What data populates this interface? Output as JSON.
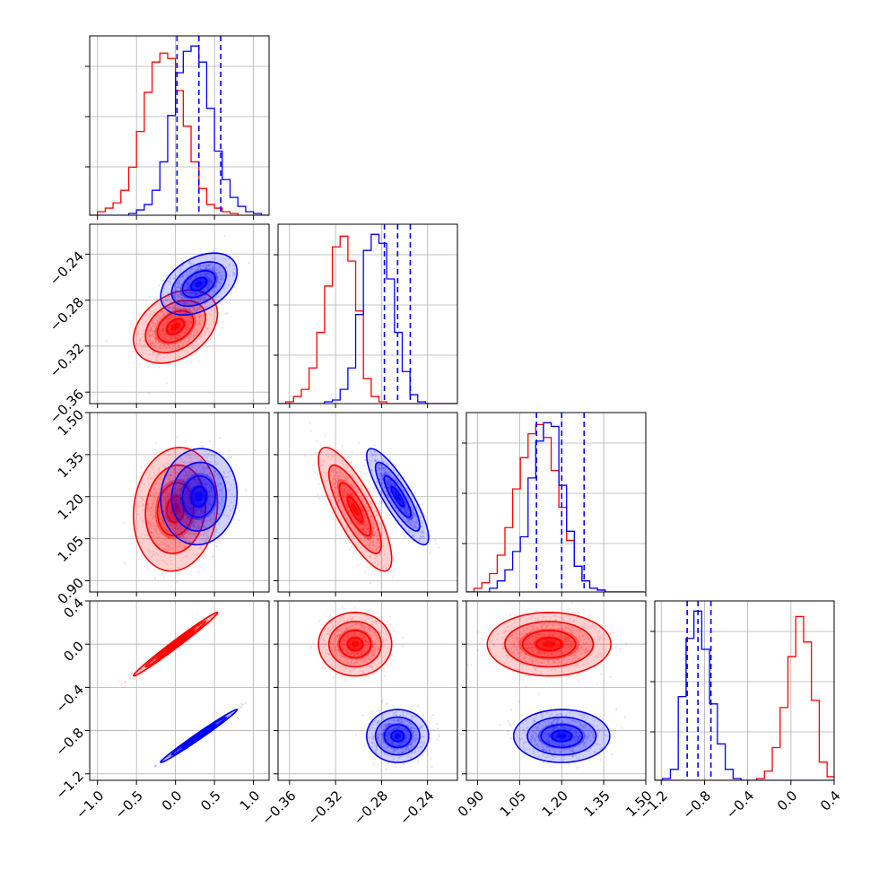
{
  "chart_data": {
    "type": "corner",
    "title": "",
    "colors": {
      "red": "#ff0000",
      "blue": "#0000ff"
    },
    "quantiles_shown_for": "blue",
    "parameters": [
      {
        "id": "p0",
        "range": [
          -1.1,
          1.2
        ],
        "ticks": [
          -1.0,
          -0.5,
          0.0,
          0.5,
          1.0
        ],
        "tick_labels": [
          "−1.0",
          "−0.5",
          "0.0",
          "0.5",
          "1.0"
        ]
      },
      {
        "id": "p1",
        "range": [
          -0.37,
          -0.214
        ],
        "ticks": [
          -0.36,
          -0.32,
          -0.28,
          -0.24
        ],
        "tick_labels": [
          "−0.36",
          "−0.32",
          "−0.28",
          "−0.24"
        ]
      },
      {
        "id": "p2",
        "range": [
          0.86,
          1.5
        ],
        "ticks": [
          0.9,
          1.05,
          1.2,
          1.35,
          1.5
        ],
        "tick_labels": [
          "0.90",
          "1.05",
          "1.20",
          "1.35",
          "1.50"
        ]
      },
      {
        "id": "p3",
        "range": [
          -1.26,
          0.4
        ],
        "ticks": [
          -1.2,
          -0.8,
          -0.4,
          0.0,
          0.4
        ],
        "tick_labels": [
          "−1.2",
          "−0.8",
          "−0.4",
          "0.0",
          "0.4"
        ]
      }
    ],
    "series": [
      {
        "color": "red",
        "marginal_means": [
          0.0,
          -0.303,
          1.155,
          0.0
        ],
        "marginal_sds": [
          0.22,
          0.013,
          0.09,
          0.12
        ],
        "correlations": {
          "0-1": 0.35,
          "0-2": 0.1,
          "0-3": 0.99,
          "1-2": -0.8,
          "1-3": 0.0,
          "2-3": 0.0
        },
        "histograms": {
          "p0": {
            "bin_start": -1.1,
            "bin_width": 0.1,
            "counts": [
              0,
              2,
              4,
              7,
              14,
              27,
              47,
              69,
              86,
              91,
              88,
              70,
              50,
              30,
              15,
              6,
              4,
              2,
              1,
              0,
              0,
              0,
              0
            ]
          },
          "p1": {
            "bin_start": -0.37,
            "bin_width": 0.00675,
            "counts": [
              0,
              1,
              4,
              8,
              20,
              40,
              66,
              88,
              94,
              80,
              52,
              14,
              4,
              1,
              0,
              0,
              0,
              0,
              0,
              0,
              0,
              0,
              0
            ]
          },
          "p2": {
            "bin_start": 0.86,
            "bin_width": 0.0275,
            "counts": [
              0,
              2,
              5,
              10,
              20,
              35,
              56,
              73,
              86,
              91,
              84,
              66,
              46,
              28,
              14,
              6,
              2,
              1,
              0,
              0,
              0,
              0,
              0
            ]
          },
          "p3": {
            "bin_start": -1.26,
            "bin_width": 0.0725,
            "counts": [
              0,
              0,
              0,
              0,
              0,
              0,
              0,
              0,
              0,
              0,
              0,
              0,
              0,
              1,
              5,
              18,
              40,
              68,
              90,
              76,
              44,
              10,
              2
            ]
          }
        }
      },
      {
        "color": "blue",
        "marginal_means": [
          0.3,
          -0.266,
          1.2,
          -0.85
        ],
        "marginal_sds": [
          0.2,
          0.011,
          0.07,
          0.1
        ],
        "correlations": {
          "0-1": 0.4,
          "0-2": 0.05,
          "0-3": 0.99,
          "1-2": -0.85,
          "1-3": 0.0,
          "2-3": 0.0
        },
        "histograms": {
          "p0": {
            "bin_start": -1.1,
            "bin_width": 0.1,
            "counts": [
              0,
              0,
              0,
              0,
              0,
              1,
              3,
              6,
              14,
              30,
              56,
              80,
              92,
              95,
              86,
              60,
              36,
              20,
              10,
              5,
              2,
              1,
              0
            ]
          },
          "p1": {
            "bin_start": -0.37,
            "bin_width": 0.00675,
            "counts": [
              0,
              0,
              0,
              0,
              0,
              0,
              1,
              2,
              8,
              20,
              50,
              86,
              95,
              90,
              70,
              40,
              18,
              5,
              1,
              0,
              0,
              0,
              0
            ]
          },
          "p2": {
            "bin_start": 0.86,
            "bin_width": 0.0275,
            "counts": [
              0,
              0,
              0,
              2,
              6,
              12,
              22,
              30,
              62,
              82,
              92,
              90,
              58,
              33,
              14,
              6,
              2,
              1,
              0,
              0,
              0,
              0,
              0
            ]
          },
          "p3": {
            "bin_start": -1.26,
            "bin_width": 0.0725,
            "counts": [
              0,
              1,
              6,
              46,
              78,
              93,
              72,
              42,
              20,
              6,
              1,
              0,
              0,
              0,
              0,
              0,
              0,
              0,
              0,
              0,
              0,
              0,
              0
            ]
          }
        },
        "quantiles": {
          "p0": [
            0.02,
            0.3,
            0.58
          ],
          "p1": [
            -0.2775,
            -0.266,
            -0.255
          ],
          "p2": [
            1.11,
            1.2,
            1.28
          ],
          "p3": [
            -0.96,
            -0.86,
            -0.74
          ]
        }
      }
    ]
  }
}
